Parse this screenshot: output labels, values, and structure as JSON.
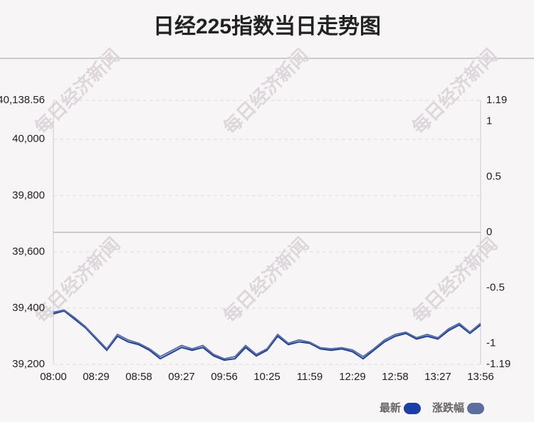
{
  "chart_data": {
    "type": "line",
    "title": "日经225指数当日走势图",
    "watermark": "每日经济新闻",
    "categories": [
      "08:00",
      null,
      null,
      null,
      "08:29",
      null,
      null,
      null,
      "08:58",
      null,
      null,
      null,
      "09:27",
      null,
      null,
      null,
      "09:56",
      null,
      null,
      null,
      "10:25",
      null,
      null,
      null,
      "11:59",
      null,
      null,
      null,
      "12:29",
      null,
      null,
      null,
      "12:58",
      null,
      null,
      null,
      "13:27",
      null,
      null,
      null,
      "13:56"
    ],
    "series": [
      {
        "name": "最新",
        "color": "#1a3fa6",
        "values": [
          39380,
          39390,
          39360,
          39330,
          39290,
          39250,
          39300,
          39280,
          39270,
          39250,
          39220,
          39240,
          39260,
          39250,
          39260,
          39230,
          39215,
          39220,
          39260,
          39230,
          39250,
          39300,
          39270,
          39280,
          39275,
          39255,
          39250,
          39255,
          39245,
          39220,
          39250,
          39280,
          39300,
          39310,
          39290,
          39300,
          39290,
          39320,
          39340,
          39310,
          39340
        ]
      },
      {
        "name": "涨跌幅",
        "color": "#5b6f9f",
        "axis": "y2",
        "values": [
          -0.72,
          -0.7,
          -0.77,
          -0.85,
          -0.95,
          -1.05,
          -0.92,
          -0.97,
          -1.0,
          -1.05,
          -1.12,
          -1.07,
          -1.02,
          -1.05,
          -1.02,
          -1.1,
          -1.14,
          -1.12,
          -1.02,
          -1.1,
          -1.05,
          -0.92,
          -1.0,
          -0.97,
          -0.99,
          -1.04,
          -1.05,
          -1.04,
          -1.06,
          -1.12,
          -1.05,
          -0.97,
          -0.92,
          -0.9,
          -0.95,
          -0.92,
          -0.95,
          -0.87,
          -0.82,
          -0.9,
          -0.82
        ]
      }
    ],
    "ylim": [
      39200,
      40138.56
    ],
    "yticks": [
      {
        "value": 39200,
        "label": "39,200"
      },
      {
        "value": 39400,
        "label": "39,400"
      },
      {
        "value": 39600,
        "label": "39,600"
      },
      {
        "value": 39800,
        "label": "39,800"
      },
      {
        "value": 40000,
        "label": "40,000"
      },
      {
        "value": 40138.56,
        "label": "40,138.56"
      }
    ],
    "y2lim": [
      -1.19,
      1.19
    ],
    "y2ticks": [
      -1.19,
      -1,
      -0.5,
      0,
      0.5,
      1,
      1.19
    ],
    "grid": true
  }
}
